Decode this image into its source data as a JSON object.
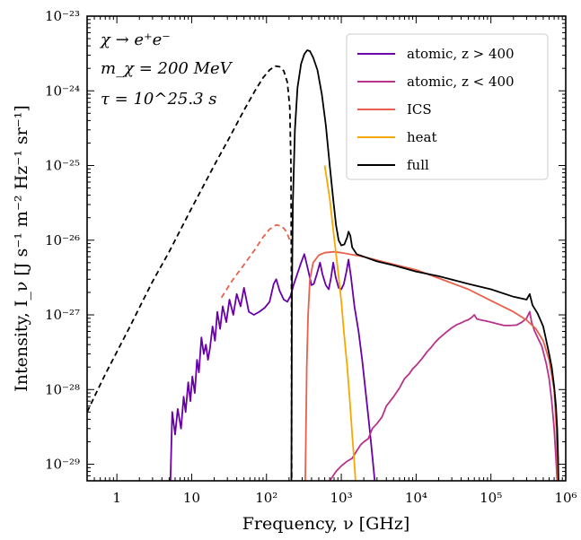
{
  "chart_data": {
    "type": "line",
    "xlabel": "Frequency, ν [GHz]",
    "ylabel": "Intensity, I_ν [J s⁻¹ m⁻² Hz⁻¹ sr⁻¹]",
    "xscale": "log",
    "yscale": "log",
    "xlim": [
      0.4,
      1000000
    ],
    "ylim": [
      6e-30,
      1e-23
    ],
    "xtick_labels": [
      "1",
      "10",
      "10²",
      "10³",
      "10⁴",
      "10⁵",
      "10⁶"
    ],
    "ytick_labels": [
      "10⁻²⁹",
      "10⁻²⁸",
      "10⁻²⁷",
      "10⁻²⁶",
      "10⁻²⁵",
      "10⁻²⁴",
      "10⁻²³"
    ],
    "annotations": [
      "χ → e⁺e⁻",
      "m_χ = 200 MeV",
      "τ = 10^25.3 s"
    ],
    "legend_position": "top-right",
    "series": [
      {
        "name": "atomic, z > 400",
        "color": "#6a00a8",
        "style": "solid",
        "points": [
          [
            5.2,
            6e-30
          ],
          [
            5.5,
            5e-29
          ],
          [
            6,
            2.5e-29
          ],
          [
            6.5,
            5.5e-29
          ],
          [
            7.2,
            3e-29
          ],
          [
            7.8,
            8e-29
          ],
          [
            8.3,
            5e-29
          ],
          [
            9,
            1.25e-28
          ],
          [
            9.6,
            7e-29
          ],
          [
            10.2,
            1.5e-28
          ],
          [
            11,
            9e-29
          ],
          [
            11.8,
            2.5e-28
          ],
          [
            12.5,
            1.7e-28
          ],
          [
            13.5,
            5e-28
          ],
          [
            14.5,
            3e-28
          ],
          [
            15.5,
            4e-28
          ],
          [
            16.5,
            2.5e-28
          ],
          [
            17.5,
            3.5e-28
          ],
          [
            19,
            7e-28
          ],
          [
            20.5,
            4.5e-28
          ],
          [
            22,
            1.1e-27
          ],
          [
            24,
            6.5e-28
          ],
          [
            26,
            1.3e-27
          ],
          [
            29,
            8e-28
          ],
          [
            32,
            1.6e-27
          ],
          [
            36,
            1e-27
          ],
          [
            40,
            1.9e-27
          ],
          [
            45,
            1.3e-27
          ],
          [
            50,
            2.3e-27
          ],
          [
            58,
            1.1e-27
          ],
          [
            68,
            1e-27
          ],
          [
            80,
            1.1e-27
          ],
          [
            95,
            1.25e-27
          ],
          [
            110,
            1.5e-27
          ],
          [
            125,
            2.6e-27
          ],
          [
            135,
            3e-27
          ],
          [
            150,
            2.1e-27
          ],
          [
            170,
            1.6e-27
          ],
          [
            190,
            1.5e-27
          ],
          [
            210,
            1.8e-27
          ],
          [
            230,
            2.5e-27
          ],
          [
            260,
            3.6e-27
          ],
          [
            290,
            5e-27
          ],
          [
            320,
            6.5e-27
          ],
          [
            360,
            4e-27
          ],
          [
            400,
            2.5e-27
          ],
          [
            430,
            2.6e-27
          ],
          [
            470,
            3.5e-27
          ],
          [
            520,
            5e-27
          ],
          [
            560,
            3.5e-27
          ],
          [
            620,
            2.5e-27
          ],
          [
            680,
            2.2e-27
          ],
          [
            730,
            3.2e-27
          ],
          [
            780,
            5e-27
          ],
          [
            840,
            3.2e-27
          ],
          [
            920,
            2.3e-27
          ],
          [
            1000,
            2.2e-27
          ],
          [
            1080,
            2.6e-27
          ],
          [
            1170,
            3.8e-27
          ],
          [
            1250,
            5.5e-27
          ],
          [
            1350,
            3.2e-27
          ],
          [
            1500,
            1.3e-27
          ],
          [
            1700,
            6e-28
          ],
          [
            1900,
            2.5e-28
          ],
          [
            2100,
            1e-28
          ],
          [
            2350,
            3.5e-29
          ],
          [
            2600,
            1.3e-29
          ],
          [
            2800,
            6e-30
          ]
        ]
      },
      {
        "name": "atomic, z < 400",
        "color": "#b83289",
        "style": "solid",
        "points": [
          [
            700,
            6e-30
          ],
          [
            850,
            8e-30
          ],
          [
            1000,
            9.5e-30
          ],
          [
            1200,
            1.1e-29
          ],
          [
            1400,
            1.2e-29
          ],
          [
            1600,
            1.5e-29
          ],
          [
            1800,
            1.8e-29
          ],
          [
            2000,
            2e-29
          ],
          [
            2300,
            2.2e-29
          ],
          [
            2600,
            3e-29
          ],
          [
            3000,
            3.5e-29
          ],
          [
            3500,
            4.3e-29
          ],
          [
            4000,
            6e-29
          ],
          [
            4500,
            7e-29
          ],
          [
            5000,
            8e-29
          ],
          [
            6000,
            1.05e-28
          ],
          [
            7000,
            1.4e-28
          ],
          [
            8000,
            1.6e-28
          ],
          [
            9000,
            1.9e-28
          ],
          [
            10000,
            2.1e-28
          ],
          [
            12000,
            2.6e-28
          ],
          [
            14000,
            3.2e-28
          ],
          [
            16000,
            3.7e-28
          ],
          [
            18000,
            4.3e-28
          ],
          [
            20000,
            4.8e-28
          ],
          [
            25000,
            5.8e-28
          ],
          [
            30000,
            6.7e-28
          ],
          [
            35000,
            7.4e-28
          ],
          [
            40000,
            7.8e-28
          ],
          [
            45000,
            8.3e-28
          ],
          [
            50000,
            8.6e-28
          ],
          [
            55000,
            9.2e-28
          ],
          [
            60000,
            1e-27
          ],
          [
            65000,
            8.8e-28
          ],
          [
            75000,
            8.5e-28
          ],
          [
            85000,
            8.3e-28
          ],
          [
            100000,
            8e-28
          ],
          [
            120000,
            7.6e-28
          ],
          [
            150000,
            7.2e-28
          ],
          [
            180000,
            7.2e-28
          ],
          [
            220000,
            7.3e-28
          ],
          [
            260000,
            8e-28
          ],
          [
            300000,
            9e-28
          ],
          [
            330000,
            1.1e-27
          ],
          [
            350000,
            8e-28
          ],
          [
            380000,
            6.2e-28
          ],
          [
            420000,
            5e-28
          ],
          [
            480000,
            3.8e-28
          ],
          [
            550000,
            2.2e-28
          ],
          [
            600000,
            1.4e-28
          ],
          [
            650000,
            7e-29
          ],
          [
            700000,
            3e-29
          ],
          [
            740000,
            1.2e-29
          ],
          [
            770000,
            6e-30
          ]
        ]
      },
      {
        "name": "ICS",
        "color": "#e8604c",
        "style": "solid",
        "points": [
          [
            330,
            6e-30
          ],
          [
            345,
            2e-28
          ],
          [
            360,
            1e-27
          ],
          [
            380,
            3e-27
          ],
          [
            420,
            5e-27
          ],
          [
            500,
            6.3e-27
          ],
          [
            600,
            6.8e-27
          ],
          [
            800,
            7e-27
          ],
          [
            1000,
            6.8e-27
          ],
          [
            2000,
            6e-27
          ],
          [
            4000,
            5e-27
          ],
          [
            10000,
            4e-27
          ],
          [
            20000,
            3.1e-27
          ],
          [
            50000,
            2.2e-27
          ],
          [
            100000,
            1.55e-27
          ],
          [
            200000,
            1.1e-27
          ],
          [
            300000,
            8.5e-28
          ],
          [
            400000,
            6.5e-28
          ],
          [
            500000,
            4.5e-28
          ],
          [
            600000,
            2.5e-28
          ],
          [
            700000,
            1e-28
          ],
          [
            750000,
            3e-29
          ],
          [
            780000,
            6e-30
          ]
        ]
      },
      {
        "name": "ICS (dashed)",
        "color": "#e8604c",
        "style": "dashed",
        "points": [
          [
            25,
            1.7e-27
          ],
          [
            35,
            2.9e-27
          ],
          [
            50,
            4.7e-27
          ],
          [
            70,
            7.5e-27
          ],
          [
            90,
            1.1e-26
          ],
          [
            110,
            1.4e-26
          ],
          [
            135,
            1.6e-26
          ],
          [
            160,
            1.55e-26
          ],
          [
            185,
            1.3e-26
          ],
          [
            205,
            1e-26
          ]
        ]
      },
      {
        "name": "heat",
        "color": "#f6a800",
        "style": "solid",
        "points": [
          [
            600,
            1e-25
          ],
          [
            700,
            3.6e-26
          ],
          [
            800,
            1.1e-26
          ],
          [
            900,
            4e-27
          ],
          [
            1000,
            1.5e-27
          ],
          [
            1100,
            5e-28
          ],
          [
            1200,
            2e-28
          ],
          [
            1300,
            7e-29
          ],
          [
            1400,
            2.5e-29
          ],
          [
            1500,
            1e-29
          ],
          [
            1550,
            6e-30
          ]
        ]
      },
      {
        "name": "full",
        "color": "#000000",
        "style": "solid",
        "points": [
          [
            215,
            6e-30
          ],
          [
            219,
            2e-27
          ],
          [
            225,
            3e-26
          ],
          [
            240,
            3e-25
          ],
          [
            260,
            1.1e-24
          ],
          [
            290,
            2.3e-24
          ],
          [
            320,
            3.1e-24
          ],
          [
            350,
            3.5e-24
          ],
          [
            380,
            3.4e-24
          ],
          [
            420,
            2.8e-24
          ],
          [
            480,
            1.9e-24
          ],
          [
            550,
            9e-25
          ],
          [
            620,
            3.5e-25
          ],
          [
            700,
            1e-25
          ],
          [
            780,
            3.5e-26
          ],
          [
            850,
            1.6e-26
          ],
          [
            920,
            1e-26
          ],
          [
            1000,
            8.5e-27
          ],
          [
            1100,
            8.8e-27
          ],
          [
            1200,
            1.1e-26
          ],
          [
            1250,
            1.3e-26
          ],
          [
            1320,
            1.15e-26
          ],
          [
            1400,
            8e-27
          ],
          [
            1600,
            6.5e-27
          ],
          [
            2000,
            6e-27
          ],
          [
            3000,
            5.2e-27
          ],
          [
            5000,
            4.6e-27
          ],
          [
            10000,
            3.8e-27
          ],
          [
            20000,
            3.3e-27
          ],
          [
            50000,
            2.6e-27
          ],
          [
            100000,
            2.2e-27
          ],
          [
            200000,
            1.75e-27
          ],
          [
            300000,
            1.6e-27
          ],
          [
            330000,
            1.9e-27
          ],
          [
            360000,
            1.35e-27
          ],
          [
            420000,
            1.05e-27
          ],
          [
            500000,
            7e-28
          ],
          [
            550000,
            4.5e-28
          ],
          [
            600000,
            3e-28
          ],
          [
            650000,
            2e-28
          ],
          [
            700000,
            1.1e-28
          ],
          [
            740000,
            6e-29
          ],
          [
            770000,
            3e-29
          ],
          [
            790000,
            1.2e-29
          ],
          [
            800000,
            6e-30
          ]
        ]
      },
      {
        "name": "full (dashed)",
        "color": "#000000",
        "style": "dashed",
        "points": [
          [
            0.4,
            5e-29
          ],
          [
            0.5,
            8e-29
          ],
          [
            0.7,
            1.6e-28
          ],
          [
            1,
            3.2e-28
          ],
          [
            1.5,
            7e-28
          ],
          [
            2,
            1.25e-27
          ],
          [
            3,
            2.8e-27
          ],
          [
            5,
            7e-27
          ],
          [
            7,
            1.35e-26
          ],
          [
            10,
            2.7e-26
          ],
          [
            15,
            5.8e-26
          ],
          [
            20,
            1e-25
          ],
          [
            30,
            2.1e-25
          ],
          [
            40,
            3.6e-25
          ],
          [
            50,
            5.5e-25
          ],
          [
            70,
            1e-24
          ],
          [
            90,
            1.5e-24
          ],
          [
            110,
            1.9e-24
          ],
          [
            130,
            2.15e-24
          ],
          [
            150,
            2.1e-24
          ],
          [
            170,
            1.85e-24
          ],
          [
            190,
            1.3e-24
          ],
          [
            205,
            6e-25
          ],
          [
            212,
            1e-25
          ],
          [
            216,
            2e-27
          ],
          [
            217,
            6e-30
          ]
        ]
      }
    ]
  }
}
